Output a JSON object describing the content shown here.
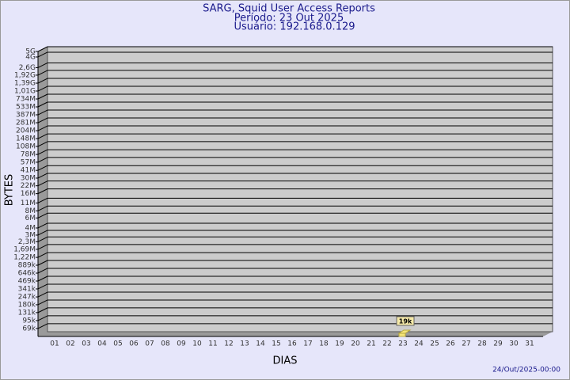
{
  "chart_data": {
    "type": "bar",
    "title": "SARG, Squid User Access Reports",
    "subtitle": [
      "Período: 23 Out 2025",
      "Usuário: 192.168.0.129"
    ],
    "y_label": "BYTES",
    "x_label": "DIAS",
    "footer": "24/Out/2025-00:00",
    "log_scale": true,
    "grid": true,
    "color": "#f5e57a",
    "categories": [
      "01",
      "02",
      "03",
      "04",
      "05",
      "06",
      "07",
      "08",
      "09",
      "10",
      "11",
      "12",
      "13",
      "14",
      "15",
      "16",
      "17",
      "18",
      "19",
      "20",
      "21",
      "22",
      "23",
      "24",
      "25",
      "26",
      "27",
      "28",
      "29",
      "30",
      "31"
    ],
    "values": [
      null,
      null,
      null,
      null,
      null,
      null,
      null,
      null,
      null,
      null,
      null,
      null,
      null,
      null,
      null,
      null,
      null,
      null,
      null,
      null,
      null,
      null,
      19000,
      null,
      null,
      null,
      null,
      null,
      null,
      null,
      null
    ],
    "value_labels": [
      null,
      null,
      null,
      null,
      null,
      null,
      null,
      null,
      null,
      null,
      null,
      null,
      null,
      null,
      null,
      null,
      null,
      null,
      null,
      null,
      null,
      null,
      "19k",
      null,
      null,
      null,
      null,
      null,
      null,
      null,
      null
    ],
    "ylim": [
      50000,
      5000000000
    ],
    "yticks": [
      {
        "value": 69000,
        "label": "69k"
      },
      {
        "value": 95000,
        "label": "95k"
      },
      {
        "value": 131000,
        "label": "131k"
      },
      {
        "value": 180000,
        "label": "180k"
      },
      {
        "value": 247000,
        "label": "247k"
      },
      {
        "value": 341000,
        "label": "341k"
      },
      {
        "value": 469000,
        "label": "469k"
      },
      {
        "value": 646000,
        "label": "646k"
      },
      {
        "value": 889000,
        "label": "889k"
      },
      {
        "value": 1220000,
        "label": "1,22M"
      },
      {
        "value": 1690000,
        "label": "1,69M"
      },
      {
        "value": 2300000,
        "label": "2,3M"
      },
      {
        "value": 3000000,
        "label": "3M"
      },
      {
        "value": 4000000,
        "label": "4M"
      },
      {
        "value": 6000000,
        "label": "6M"
      },
      {
        "value": 8000000,
        "label": "8M"
      },
      {
        "value": 11000000,
        "label": "11M"
      },
      {
        "value": 16000000,
        "label": "16M"
      },
      {
        "value": 22000000,
        "label": "22M"
      },
      {
        "value": 30000000,
        "label": "30M"
      },
      {
        "value": 41000000,
        "label": "41M"
      },
      {
        "value": 57000000,
        "label": "57M"
      },
      {
        "value": 78000000,
        "label": "78M"
      },
      {
        "value": 108000000,
        "label": "108M"
      },
      {
        "value": 148000000,
        "label": "148M"
      },
      {
        "value": 204000000,
        "label": "204M"
      },
      {
        "value": 281000000,
        "label": "281M"
      },
      {
        "value": 387000000,
        "label": "387M"
      },
      {
        "value": 533000000,
        "label": "533M"
      },
      {
        "value": 734000000,
        "label": "734M"
      },
      {
        "value": 1010000000,
        "label": "1,01G"
      },
      {
        "value": 1390000000,
        "label": "1,39G"
      },
      {
        "value": 1920000000,
        "label": "1,92G"
      },
      {
        "value": 2600000000,
        "label": "2,6G"
      },
      {
        "value": 4000000000,
        "label": "4G"
      },
      {
        "value": 5000000000,
        "label": "5G"
      }
    ]
  }
}
